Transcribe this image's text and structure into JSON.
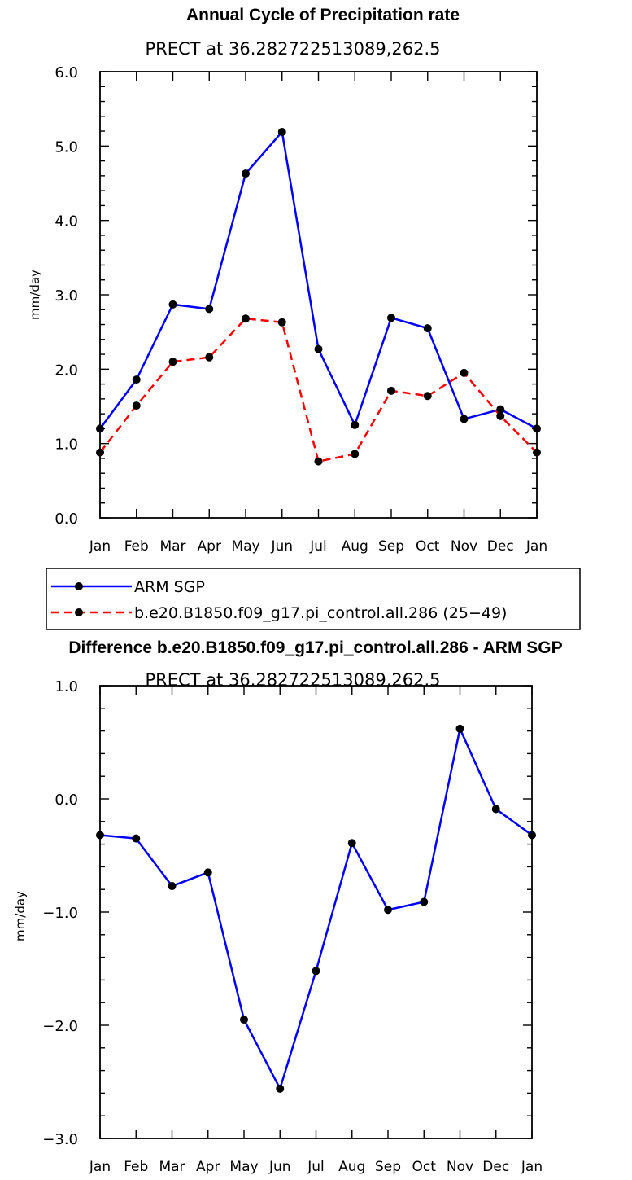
{
  "chart_data": [
    {
      "type": "line",
      "title": "Annual Cycle of Precipitation rate",
      "subtitle": "PRECT at 36.282722513089,262.5",
      "xlabel": "",
      "ylabel": "mm/day",
      "ylim": [
        0,
        6
      ],
      "yticks": [
        "0.0",
        "1.0",
        "2.0",
        "3.0",
        "4.0",
        "5.0",
        "6.0"
      ],
      "categories": [
        "Jan",
        "Feb",
        "Mar",
        "Apr",
        "May",
        "Jun",
        "Jul",
        "Aug",
        "Sep",
        "Oct",
        "Nov",
        "Dec",
        "Jan"
      ],
      "series": [
        {
          "name": "ARM SGP",
          "color": "#0000ff",
          "dash": "solid",
          "values": [
            1.2,
            1.86,
            2.87,
            2.81,
            4.63,
            5.19,
            2.27,
            1.25,
            2.69,
            2.55,
            1.33,
            1.46,
            1.2
          ]
        },
        {
          "name": "b.e20.B1850.f09_g17.pi_control.all.286 (25−49)",
          "color": "#ff0000",
          "dash": "dashed",
          "values": [
            0.88,
            1.51,
            2.1,
            2.16,
            2.68,
            2.63,
            0.76,
            0.86,
            1.71,
            1.64,
            1.95,
            1.37,
            0.88
          ]
        }
      ],
      "legend": "below-plot"
    },
    {
      "type": "line",
      "title": "Difference b.e20.B1850.f09_g17.pi_control.all.286 - ARM SGP",
      "subtitle": "PRECT at 36.282722513089,262.5",
      "xlabel": "",
      "ylabel": "mm/day",
      "ylim": [
        -3,
        1
      ],
      "yticks": [
        "−3.0",
        "−2.0",
        "−1.0",
        "0.0",
        "1.0"
      ],
      "categories": [
        "Jan",
        "Feb",
        "Mar",
        "Apr",
        "May",
        "Jun",
        "Jul",
        "Aug",
        "Sep",
        "Oct",
        "Nov",
        "Dec",
        "Jan"
      ],
      "series": [
        {
          "name": "Difference",
          "color": "#0000ff",
          "dash": "solid",
          "values": [
            -0.32,
            -0.35,
            -0.77,
            -0.65,
            -1.95,
            -2.56,
            -1.52,
            -0.39,
            -0.98,
            -0.91,
            0.62,
            -0.09,
            -0.32
          ]
        }
      ]
    }
  ]
}
